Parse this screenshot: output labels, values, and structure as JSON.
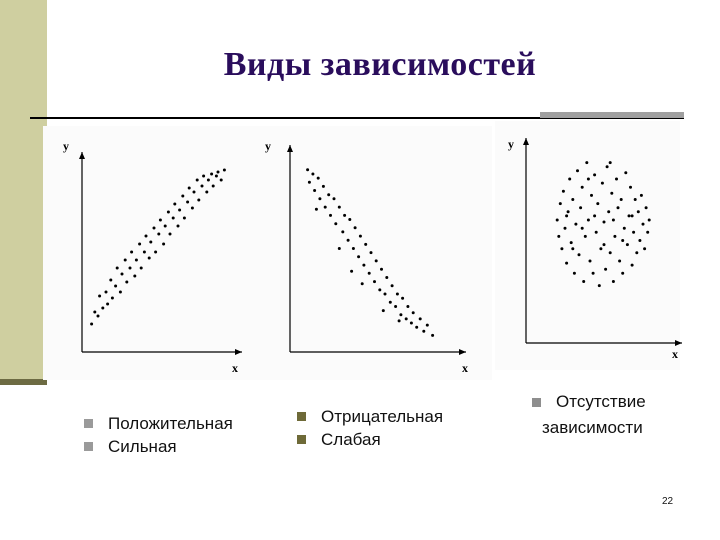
{
  "slide": {
    "title": "Виды зависимостей",
    "page_number": "22"
  },
  "colors": {
    "title": "#2a0d5c",
    "band": "#cfcfa0",
    "bullet_grey": "#9a9a9a",
    "bullet_olive": "#6e6a38"
  },
  "captions": {
    "positive_strong": [
      "Положительная",
      "Сильная"
    ],
    "negative_weak": [
      "Отрицательная",
      "Слабая"
    ],
    "no_dependency": [
      "Отсутствие",
      "зависимости"
    ]
  },
  "chart_data": [
    {
      "type": "scatter",
      "xlabel": "x",
      "ylabel": "y",
      "xlim": [
        0,
        10
      ],
      "ylim": [
        0,
        10
      ],
      "points": [
        [
          0.6,
          1.4
        ],
        [
          0.8,
          2.0
        ],
        [
          1.0,
          1.8
        ],
        [
          1.1,
          2.8
        ],
        [
          1.3,
          2.2
        ],
        [
          1.5,
          3.0
        ],
        [
          1.6,
          2.4
        ],
        [
          1.8,
          3.6
        ],
        [
          1.9,
          2.7
        ],
        [
          2.1,
          3.3
        ],
        [
          2.2,
          4.2
        ],
        [
          2.4,
          3.0
        ],
        [
          2.5,
          3.9
        ],
        [
          2.7,
          4.6
        ],
        [
          2.8,
          3.5
        ],
        [
          3.0,
          4.2
        ],
        [
          3.1,
          5.0
        ],
        [
          3.3,
          3.8
        ],
        [
          3.4,
          4.6
        ],
        [
          3.6,
          5.4
        ],
        [
          3.7,
          4.2
        ],
        [
          3.9,
          5.0
        ],
        [
          4.0,
          5.8
        ],
        [
          4.2,
          4.7
        ],
        [
          4.3,
          5.5
        ],
        [
          4.5,
          6.2
        ],
        [
          4.6,
          5.0
        ],
        [
          4.8,
          5.9
        ],
        [
          4.9,
          6.6
        ],
        [
          5.1,
          5.4
        ],
        [
          5.2,
          6.3
        ],
        [
          5.4,
          7.0
        ],
        [
          5.5,
          5.9
        ],
        [
          5.7,
          6.7
        ],
        [
          5.8,
          7.4
        ],
        [
          6.0,
          6.3
        ],
        [
          6.1,
          7.1
        ],
        [
          6.3,
          7.8
        ],
        [
          6.4,
          6.7
        ],
        [
          6.6,
          7.5
        ],
        [
          6.7,
          8.2
        ],
        [
          6.9,
          7.2
        ],
        [
          7.0,
          8.0
        ],
        [
          7.2,
          8.6
        ],
        [
          7.3,
          7.6
        ],
        [
          7.5,
          8.3
        ],
        [
          7.6,
          8.8
        ],
        [
          7.8,
          8.0
        ],
        [
          7.9,
          8.6
        ],
        [
          8.1,
          8.9
        ],
        [
          8.2,
          8.3
        ],
        [
          8.4,
          8.8
        ],
        [
          8.5,
          9.0
        ],
        [
          8.7,
          8.6
        ],
        [
          8.9,
          9.1
        ]
      ]
    },
    {
      "type": "scatter",
      "xlabel": "x",
      "ylabel": "y",
      "xlim": [
        0,
        10
      ],
      "ylim": [
        0,
        10
      ],
      "points": [
        [
          1.0,
          8.8
        ],
        [
          1.1,
          8.2
        ],
        [
          1.3,
          8.6
        ],
        [
          1.4,
          7.8
        ],
        [
          1.6,
          8.4
        ],
        [
          1.7,
          7.4
        ],
        [
          1.9,
          8.0
        ],
        [
          2.0,
          7.0
        ],
        [
          2.2,
          7.6
        ],
        [
          2.3,
          6.6
        ],
        [
          2.5,
          7.4
        ],
        [
          2.6,
          6.2
        ],
        [
          2.8,
          7.0
        ],
        [
          3.0,
          5.8
        ],
        [
          3.1,
          6.6
        ],
        [
          3.3,
          5.4
        ],
        [
          3.4,
          6.4
        ],
        [
          3.6,
          5.0
        ],
        [
          3.7,
          6.0
        ],
        [
          3.9,
          4.6
        ],
        [
          4.0,
          5.6
        ],
        [
          4.2,
          4.2
        ],
        [
          4.3,
          5.2
        ],
        [
          4.5,
          3.8
        ],
        [
          4.6,
          4.8
        ],
        [
          4.8,
          3.4
        ],
        [
          4.9,
          4.4
        ],
        [
          5.1,
          3.0
        ],
        [
          5.2,
          4.0
        ],
        [
          5.4,
          2.8
        ],
        [
          5.5,
          3.6
        ],
        [
          5.7,
          2.4
        ],
        [
          5.8,
          3.2
        ],
        [
          6.0,
          2.2
        ],
        [
          6.1,
          2.8
        ],
        [
          6.3,
          1.8
        ],
        [
          6.4,
          2.6
        ],
        [
          6.6,
          1.6
        ],
        [
          6.7,
          2.2
        ],
        [
          6.9,
          1.4
        ],
        [
          7.0,
          1.9
        ],
        [
          7.2,
          1.2
        ],
        [
          7.4,
          1.6
        ],
        [
          7.6,
          1.0
        ],
        [
          7.8,
          1.3
        ],
        [
          8.1,
          0.8
        ],
        [
          3.5,
          3.9
        ],
        [
          2.8,
          5.0
        ],
        [
          4.1,
          3.3
        ],
        [
          5.3,
          2.0
        ],
        [
          1.5,
          6.9
        ],
        [
          6.2,
          1.5
        ]
      ]
    },
    {
      "type": "scatter",
      "xlabel": "x",
      "ylabel": "y",
      "xlim": [
        0,
        10
      ],
      "ylim": [
        0,
        10
      ],
      "points": [
        [
          2.0,
          6.0
        ],
        [
          2.1,
          5.2
        ],
        [
          2.2,
          6.8
        ],
        [
          2.3,
          4.6
        ],
        [
          2.4,
          7.4
        ],
        [
          2.5,
          5.6
        ],
        [
          2.6,
          3.9
        ],
        [
          2.7,
          6.4
        ],
        [
          2.8,
          8.0
        ],
        [
          2.9,
          4.9
        ],
        [
          3.0,
          7.0
        ],
        [
          3.1,
          3.4
        ],
        [
          3.2,
          5.8
        ],
        [
          3.3,
          8.4
        ],
        [
          3.4,
          4.3
        ],
        [
          3.5,
          6.6
        ],
        [
          3.6,
          7.6
        ],
        [
          3.7,
          3.0
        ],
        [
          3.8,
          5.2
        ],
        [
          3.9,
          8.8
        ],
        [
          4.0,
          6.0
        ],
        [
          4.1,
          4.0
        ],
        [
          4.2,
          7.2
        ],
        [
          4.3,
          3.4
        ],
        [
          4.4,
          8.2
        ],
        [
          4.5,
          5.4
        ],
        [
          4.6,
          6.8
        ],
        [
          4.7,
          2.8
        ],
        [
          4.8,
          4.6
        ],
        [
          4.9,
          7.8
        ],
        [
          5.0,
          5.9
        ],
        [
          5.1,
          3.6
        ],
        [
          5.2,
          8.6
        ],
        [
          5.3,
          6.4
        ],
        [
          5.4,
          4.4
        ],
        [
          5.5,
          7.3
        ],
        [
          5.6,
          3.0
        ],
        [
          5.7,
          5.2
        ],
        [
          5.8,
          8.0
        ],
        [
          5.9,
          6.6
        ],
        [
          6.0,
          4.0
        ],
        [
          6.1,
          7.0
        ],
        [
          6.2,
          3.4
        ],
        [
          6.3,
          5.6
        ],
        [
          6.4,
          8.3
        ],
        [
          6.5,
          4.8
        ],
        [
          6.6,
          6.2
        ],
        [
          6.7,
          7.6
        ],
        [
          6.8,
          3.8
        ],
        [
          6.9,
          5.4
        ],
        [
          7.0,
          7.0
        ],
        [
          7.1,
          4.4
        ],
        [
          7.2,
          6.4
        ],
        [
          7.3,
          5.0
        ],
        [
          7.4,
          7.2
        ],
        [
          7.5,
          5.8
        ],
        [
          7.6,
          4.6
        ],
        [
          7.7,
          6.6
        ],
        [
          7.8,
          5.4
        ],
        [
          7.9,
          6.0
        ],
        [
          2.6,
          6.2
        ],
        [
          3.0,
          4.6
        ],
        [
          3.6,
          5.6
        ],
        [
          4.4,
          6.2
        ],
        [
          5.0,
          4.8
        ],
        [
          5.6,
          6.0
        ],
        [
          6.2,
          5.0
        ],
        [
          6.8,
          6.2
        ],
        [
          4.0,
          8.0
        ],
        [
          5.4,
          8.8
        ]
      ]
    }
  ]
}
